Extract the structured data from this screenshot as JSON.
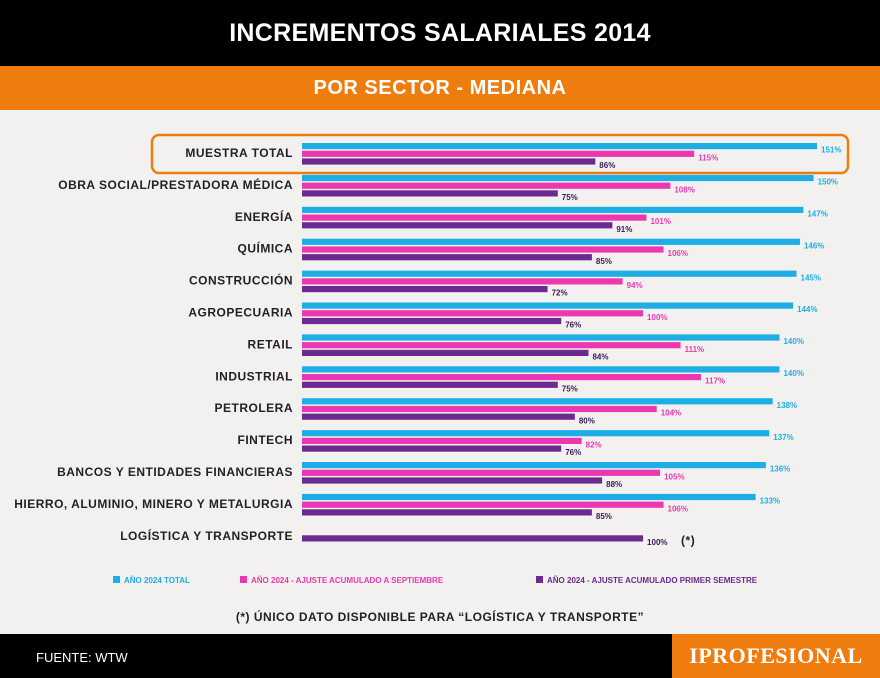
{
  "title": "INCREMENTOS SALARIALES 2014",
  "subtitle": "POR SECTOR - MEDIANA",
  "colors": {
    "total": "#1eaee6",
    "septiembre": "#ec38b0",
    "semestre": "#6b2a8f",
    "accent": "#ee7c0f"
  },
  "chart_data": {
    "type": "bar",
    "orientation": "horizontal",
    "title": "INCREMENTOS SALARIALES 2014",
    "subtitle": "POR SECTOR - MEDIANA",
    "categories": [
      "MUESTRA TOTAL",
      "OBRA SOCIAL/PRESTADORA MÉDICA",
      "ENERGÍA",
      "QUÍMICA",
      "CONSTRUCCIÓN",
      "AGROPECUARIA",
      "RETAIL",
      "INDUSTRIAL",
      "PETROLERA",
      "FINTECH",
      "BANCOS Y ENTIDADES FINANCIERAS",
      "HIERRO, ALUMINIO, MINERO Y METALURGIA",
      "LOGÍSTICA Y TRANSPORTE"
    ],
    "highlighted_category": "MUESTRA TOTAL",
    "series": [
      {
        "name": "AÑO 2024 TOTAL",
        "values": [
          151,
          150,
          147,
          146,
          145,
          144,
          140,
          140,
          138,
          137,
          136,
          133,
          null
        ]
      },
      {
        "name": "AÑO 2024 - AJUSTE ACUMULADO A SEPTIEMBRE",
        "values": [
          115,
          108,
          101,
          106,
          94,
          100,
          111,
          117,
          104,
          82,
          105,
          106,
          null
        ]
      },
      {
        "name": "AÑO 2024 - AJUSTE ACUMULADO PRIMER SEMESTRE",
        "values": [
          86,
          75,
          91,
          85,
          72,
          76,
          84,
          75,
          80,
          76,
          88,
          85,
          100
        ]
      }
    ],
    "value_suffix": "%",
    "special_note": "(*)",
    "xlim": [
      0,
      151
    ],
    "legend_position": "bottom"
  },
  "footnote": "(*) ÚNICO DATO DISPONIBLE PARA “LOGÍSTICA Y TRANSPORTE”",
  "source": "FUENTE: WTW",
  "brand": "IPROFESIONAL"
}
